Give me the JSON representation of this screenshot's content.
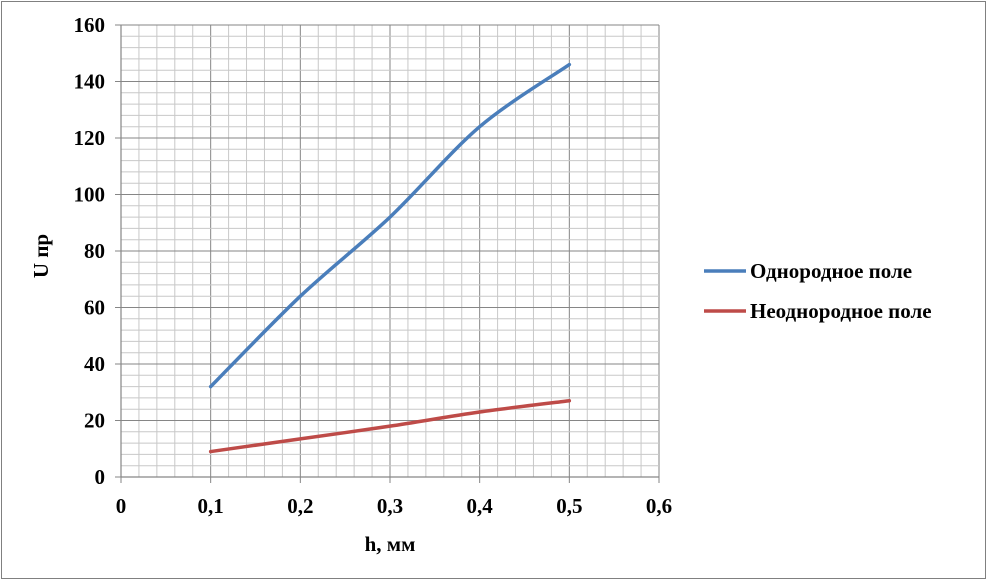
{
  "chart_data": {
    "type": "line",
    "title": "",
    "xlabel": "h, мм",
    "ylabel": "U пр",
    "xlim": [
      0,
      0.6
    ],
    "ylim": [
      0,
      160
    ],
    "x_ticks": [
      "0",
      "0,1",
      "0,2",
      "0,3",
      "0,4",
      "0,5",
      "0,6"
    ],
    "y_ticks": [
      "0",
      "20",
      "40",
      "60",
      "80",
      "100",
      "120",
      "140",
      "160"
    ],
    "grid": true,
    "legend_position": "right",
    "series": [
      {
        "name": "Однородное поле",
        "color": "#4a7ebb",
        "x": [
          0.1,
          0.2,
          0.3,
          0.4,
          0.5
        ],
        "y": [
          32,
          64,
          92,
          124,
          146
        ]
      },
      {
        "name": "Неоднородное поле",
        "color": "#be4b48",
        "x": [
          0.1,
          0.2,
          0.3,
          0.4,
          0.5
        ],
        "y": [
          9,
          13.5,
          18,
          23,
          27
        ]
      }
    ]
  }
}
